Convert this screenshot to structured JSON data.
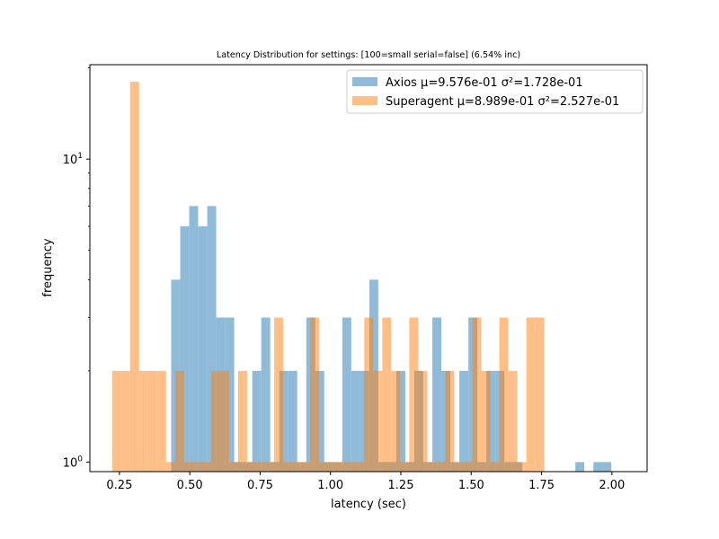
{
  "chart_data": {
    "type": "histogram",
    "title": "Latency Distribution for settings: [100=small serial=false] (6.54% inc)",
    "xlabel": "latency (sec)",
    "ylabel": "frequency",
    "yscale": "log",
    "xlim": [
      0.145,
      2.125
    ],
    "ylim": [
      0.93,
      20.5
    ],
    "xticks": [
      {
        "value": 0.25,
        "label": "0.25"
      },
      {
        "value": 0.5,
        "label": "0.50"
      },
      {
        "value": 0.75,
        "label": "0.75"
      },
      {
        "value": 1.0,
        "label": "1.00"
      },
      {
        "value": 1.25,
        "label": "1.25"
      },
      {
        "value": 1.5,
        "label": "1.50"
      },
      {
        "value": 1.75,
        "label": "1.75"
      },
      {
        "value": 2.0,
        "label": "2.00"
      }
    ],
    "yticks": [
      {
        "value": 1,
        "base": "10",
        "exp": "0"
      },
      {
        "value": 10,
        "base": "10",
        "exp": "1"
      }
    ],
    "grid": false,
    "legend_placement": "top-right",
    "series": [
      {
        "name": "Axios μ=9.576e-01 σ²=1.728e-01",
        "color": "#1f77b4",
        "alpha": 0.5,
        "bin_width": 0.0318,
        "bins": [
          [
            0.434,
            4
          ],
          [
            0.466,
            6
          ],
          [
            0.498,
            7
          ],
          [
            0.53,
            6
          ],
          [
            0.562,
            7
          ],
          [
            0.594,
            3
          ],
          [
            0.626,
            3
          ],
          [
            0.658,
            1
          ],
          [
            0.69,
            1
          ],
          [
            0.722,
            2
          ],
          [
            0.754,
            3
          ],
          [
            0.786,
            1
          ],
          [
            0.818,
            2
          ],
          [
            0.85,
            2
          ],
          [
            0.882,
            1
          ],
          [
            0.914,
            3
          ],
          [
            0.946,
            2
          ],
          [
            0.978,
            1
          ],
          [
            1.01,
            1
          ],
          [
            1.042,
            3
          ],
          [
            1.074,
            2
          ],
          [
            1.106,
            2
          ],
          [
            1.138,
            4
          ],
          [
            1.17,
            1
          ],
          [
            1.202,
            1
          ],
          [
            1.234,
            2
          ],
          [
            1.266,
            1
          ],
          [
            1.298,
            2
          ],
          [
            1.33,
            1
          ],
          [
            1.362,
            3
          ],
          [
            1.394,
            2
          ],
          [
            1.426,
            1
          ],
          [
            1.458,
            2
          ],
          [
            1.49,
            3
          ],
          [
            1.522,
            1
          ],
          [
            1.554,
            2
          ],
          [
            1.586,
            2
          ],
          [
            1.618,
            1
          ],
          [
            1.65,
            1
          ],
          [
            1.87,
            1
          ],
          [
            1.934,
            1
          ],
          [
            1.966,
            1
          ]
        ]
      },
      {
        "name": "Superagent μ=8.989e-01 σ²=2.527e-01",
        "color": "#ff7f0e",
        "alpha": 0.5,
        "bin_width": 0.0318,
        "bins": [
          [
            0.224,
            2
          ],
          [
            0.256,
            2
          ],
          [
            0.288,
            18
          ],
          [
            0.32,
            2
          ],
          [
            0.352,
            2
          ],
          [
            0.384,
            2
          ],
          [
            0.416,
            1
          ],
          [
            0.448,
            2
          ],
          [
            0.48,
            1
          ],
          [
            0.512,
            1
          ],
          [
            0.544,
            1
          ],
          [
            0.576,
            2
          ],
          [
            0.608,
            2
          ],
          [
            0.64,
            1
          ],
          [
            0.672,
            2
          ],
          [
            0.704,
            1
          ],
          [
            0.736,
            1
          ],
          [
            0.768,
            1
          ],
          [
            0.8,
            3
          ],
          [
            0.832,
            1
          ],
          [
            0.864,
            1
          ],
          [
            0.896,
            1
          ],
          [
            0.928,
            3
          ],
          [
            0.96,
            1
          ],
          [
            0.992,
            1
          ],
          [
            1.024,
            1
          ],
          [
            1.056,
            1
          ],
          [
            1.088,
            1
          ],
          [
            1.12,
            3
          ],
          [
            1.152,
            2
          ],
          [
            1.184,
            3
          ],
          [
            1.216,
            2
          ],
          [
            1.248,
            1
          ],
          [
            1.28,
            3
          ],
          [
            1.312,
            2
          ],
          [
            1.344,
            1
          ],
          [
            1.376,
            1
          ],
          [
            1.408,
            2
          ],
          [
            1.44,
            1
          ],
          [
            1.472,
            1
          ],
          [
            1.504,
            3
          ],
          [
            1.536,
            2
          ],
          [
            1.568,
            1
          ],
          [
            1.6,
            3
          ],
          [
            1.632,
            2
          ],
          [
            1.664,
            1
          ],
          [
            1.696,
            3
          ],
          [
            1.728,
            3
          ]
        ]
      }
    ]
  }
}
